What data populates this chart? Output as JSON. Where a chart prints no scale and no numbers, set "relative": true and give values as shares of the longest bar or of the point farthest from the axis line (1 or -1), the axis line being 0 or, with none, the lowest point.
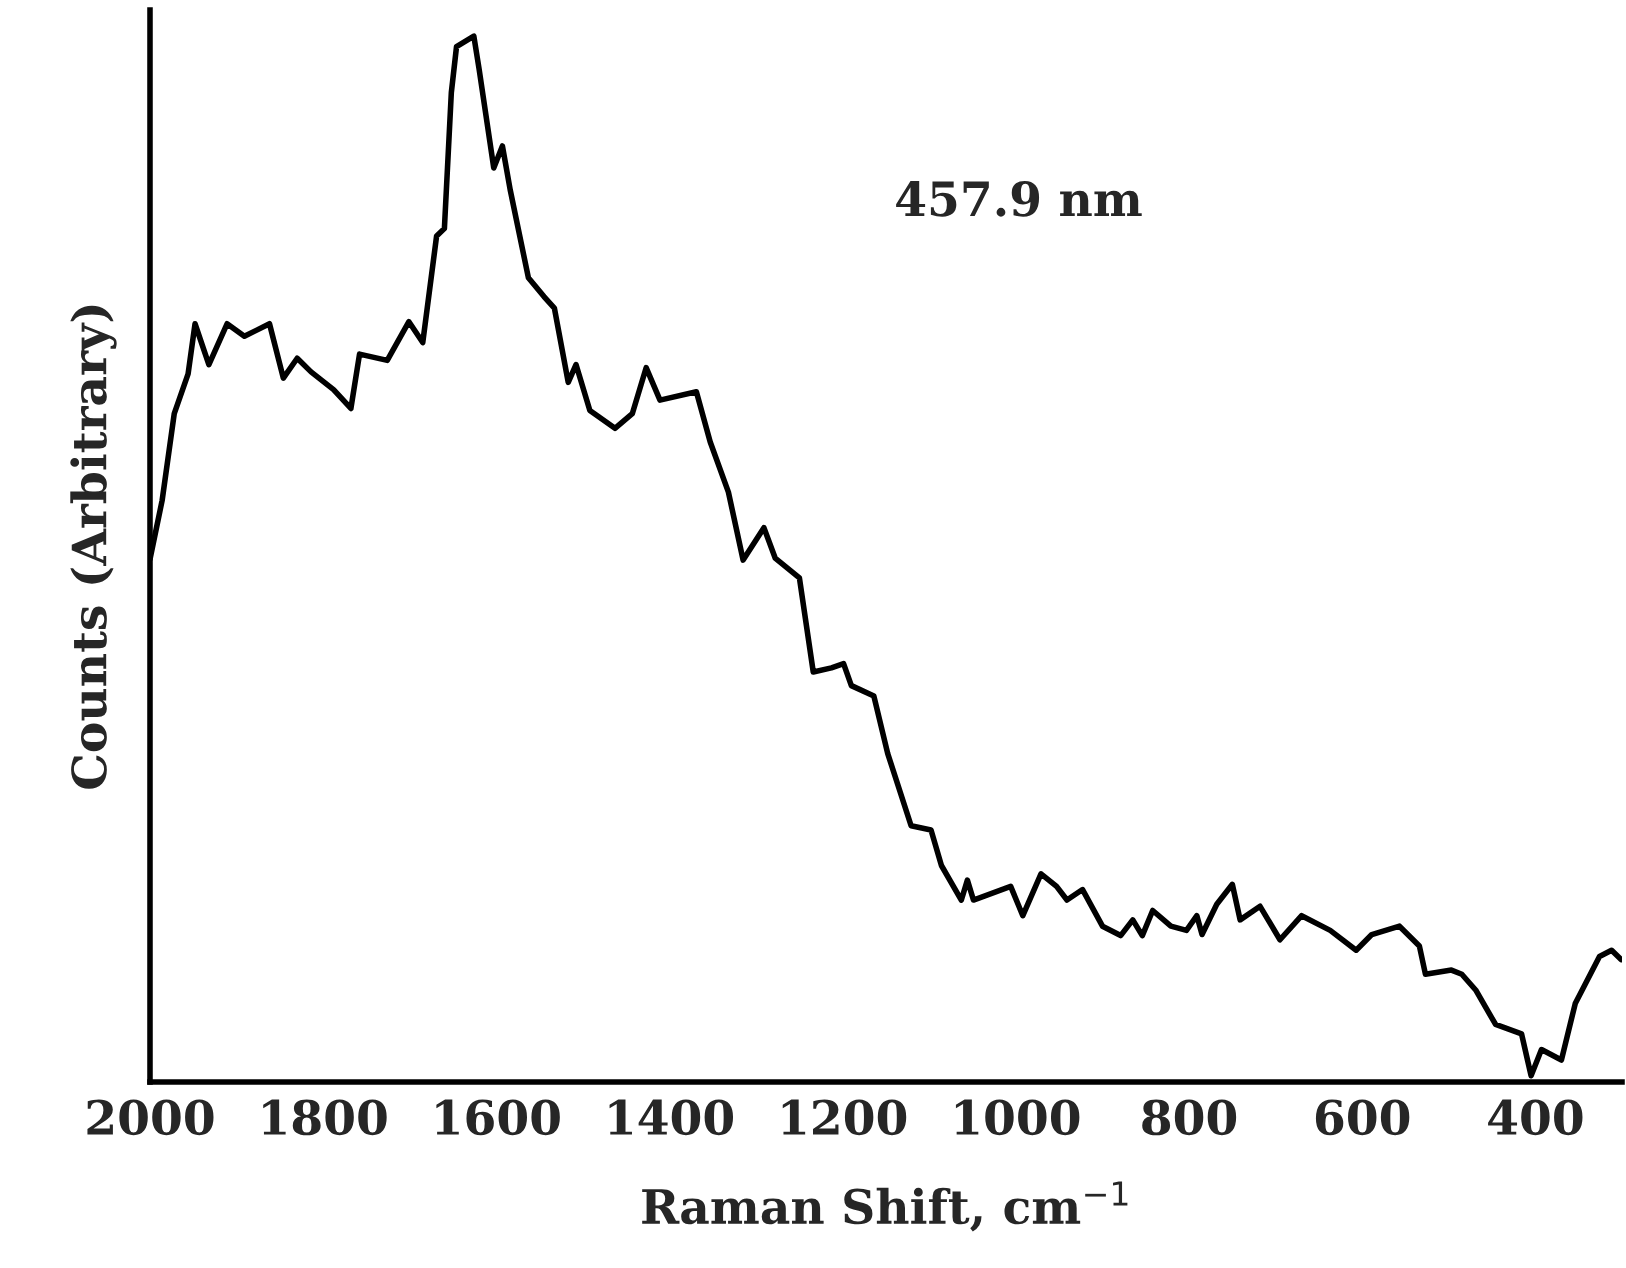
{
  "chart_data": {
    "type": "line",
    "relative": true,
    "xlabel": "Raman Shift, cm$^{−1}$",
    "ylabel": "Counts (Arbitrary)",
    "annotations": [
      "457.9 nm"
    ],
    "xlim": [
      2000,
      300
    ],
    "xticks": [
      2000,
      1800,
      1600,
      1400,
      1200,
      1000,
      800,
      600,
      400
    ],
    "marker": "none",
    "line_style": "solid",
    "series": [
      {
        "color": "#000000",
        "x": [
          2000,
          1986,
          1972,
          1956,
          1948,
          1932,
          1911,
          1891,
          1862,
          1846,
          1830,
          1814,
          1788,
          1768,
          1758,
          1726,
          1701,
          1685,
          1669,
          1660,
          1652,
          1646,
          1626,
          1620,
          1603,
          1593,
          1584,
          1563,
          1545,
          1533,
          1517,
          1508,
          1492,
          1463,
          1443,
          1427,
          1411,
          1369,
          1353,
          1332,
          1315,
          1291,
          1278,
          1250,
          1234,
          1213,
          1199,
          1190,
          1164,
          1148,
          1121,
          1098,
          1086,
          1063,
          1056,
          1049,
          1006,
          992,
          971,
          953,
          941,
          923,
          900,
          879,
          865,
          854,
          842,
          821,
          803,
          791,
          785,
          768,
          750,
          741,
          718,
          695,
          670,
          637,
          607,
          589,
          557,
          534,
          527,
          497,
          485,
          469,
          446,
          416,
          405,
          393,
          370,
          354,
          326,
          312,
          301
        ],
        "values": [
          0.5,
          0.556,
          0.639,
          0.677,
          0.725,
          0.686,
          0.725,
          0.713,
          0.725,
          0.673,
          0.692,
          0.679,
          0.662,
          0.644,
          0.696,
          0.69,
          0.727,
          0.707,
          0.809,
          0.816,
          0.946,
          0.99,
          1.0,
          0.969,
          0.874,
          0.895,
          0.853,
          0.769,
          0.751,
          0.74,
          0.669,
          0.686,
          0.642,
          0.625,
          0.639,
          0.683,
          0.652,
          0.66,
          0.612,
          0.564,
          0.499,
          0.53,
          0.501,
          0.482,
          0.392,
          0.396,
          0.4,
          0.379,
          0.369,
          0.314,
          0.245,
          0.241,
          0.207,
          0.174,
          0.193,
          0.174,
          0.187,
          0.159,
          0.199,
          0.187,
          0.174,
          0.184,
          0.149,
          0.14,
          0.155,
          0.14,
          0.164,
          0.149,
          0.145,
          0.159,
          0.141,
          0.17,
          0.189,
          0.155,
          0.168,
          0.136,
          0.159,
          0.145,
          0.126,
          0.141,
          0.149,
          0.13,
          0.103,
          0.107,
          0.103,
          0.088,
          0.055,
          0.046,
          0.006,
          0.031,
          0.021,
          0.075,
          0.12,
          0.126,
          0.117
        ]
      }
    ]
  }
}
